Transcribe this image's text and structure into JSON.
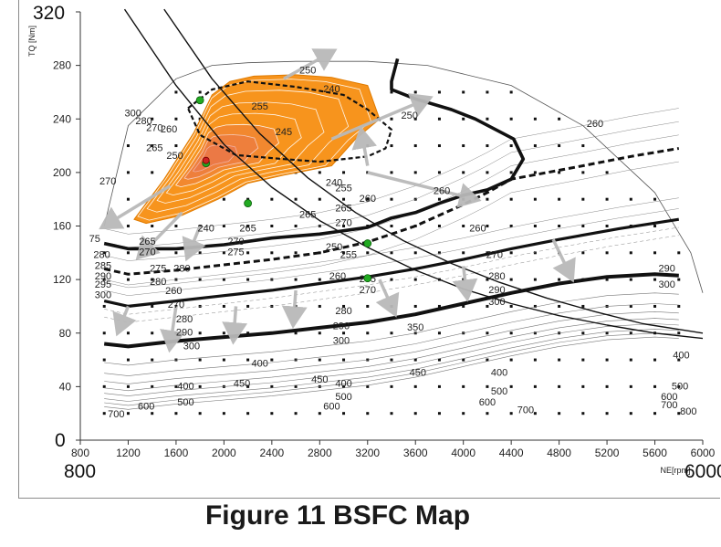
{
  "figure_caption": "Figure 11 BSFC Map",
  "x_axis_start_label": "800",
  "x_axis_end_label": "6000",
  "y_axis_top_label": "320",
  "y_axis_bottom_label": "0",
  "chart_data": {
    "type": "line",
    "title": "",
    "xlabel": "NE[rpm]",
    "ylabel": "TQ [Nm]",
    "xlim": [
      800,
      6000
    ],
    "ylim": [
      0,
      320
    ],
    "x_ticks": [
      800,
      1200,
      1600,
      2000,
      2400,
      2800,
      3200,
      3600,
      4000,
      4400,
      4800,
      5200,
      5600,
      6000
    ],
    "y_ticks": [
      0,
      40,
      80,
      120,
      160,
      200,
      240,
      280,
      320
    ],
    "grid": false,
    "colors": {
      "efficient_zone": "#f7941d",
      "arrows": "#b9b9b9",
      "markers": "#22aa22",
      "optimum": "#cc2222"
    },
    "envelope": {
      "x": [
        1000,
        1200,
        1600,
        1900,
        2200,
        2600,
        3200,
        3700,
        4400,
        5000,
        5600,
        5900,
        6000
      ],
      "y": [
        160,
        235,
        270,
        280,
        282,
        283,
        283,
        280,
        265,
        235,
        185,
        140,
        110
      ]
    },
    "series": [
      {
        "x": [
          1000,
          1200,
          1600,
          2000,
          2400,
          2800,
          3200,
          3600,
          4000,
          4200,
          4400,
          4700,
          5000,
          5400,
          5800
        ],
        "y": [
          128,
          124,
          127,
          131,
          135,
          140,
          148,
          160,
          176,
          185,
          195,
          200,
          205,
          212,
          218
        ]
      },
      {
        "x": [
          1000,
          1200,
          1600,
          2000,
          2400,
          2800,
          3200,
          3600,
          4000,
          4400,
          4800,
          5300,
          5800
        ],
        "y": [
          104,
          100,
          104,
          108,
          112,
          117,
          122,
          128,
          135,
          143,
          150,
          158,
          165
        ]
      },
      {
        "x": [
          1000,
          1200,
          1600,
          2000,
          2400,
          2800,
          3200,
          3600,
          4000,
          4400,
          4800,
          5200,
          5600,
          5800
        ],
        "y": [
          72,
          70,
          74,
          77,
          80,
          84,
          88,
          94,
          102,
          110,
          117,
          122,
          124,
          123
        ]
      },
      {
        "x": [
          1000,
          1200,
          1600,
          2000,
          2400,
          2800,
          3200,
          3400,
          3600,
          3800,
          4000,
          4200,
          4400,
          4500,
          4420,
          4100,
          3900,
          3600,
          3400,
          3400,
          3450
        ],
        "y": [
          147,
          143,
          143,
          146,
          151,
          154,
          159,
          166,
          170,
          177,
          183,
          187,
          195,
          210,
          225,
          240,
          247,
          255,
          262,
          268,
          285
        ]
      },
      {
        "x": [
          1700,
          1900,
          2200,
          2600,
          3000,
          3200,
          3400,
          3350,
          3200,
          2800,
          2500,
          2100,
          1800,
          1700
        ],
        "y": [
          248,
          262,
          268,
          264,
          258,
          247,
          232,
          218,
          212,
          208,
          210,
          213,
          228,
          248
        ]
      },
      {
        "x": [
          1170,
          1600,
          2000,
          2400,
          2800,
          3200,
          3600,
          4000,
          4400,
          4800,
          5200,
          5600,
          6000
        ],
        "y": [
          322,
          265,
          221,
          189,
          164,
          144,
          127,
          113,
          102,
          93,
          86,
          80,
          76
        ]
      },
      {
        "x": [
          1500,
          1900,
          2300,
          2700,
          3100,
          3500,
          3900,
          4300,
          4700,
          5100,
          5500,
          6000
        ],
        "y": [
          322,
          270,
          229,
          196,
          170,
          149,
          132,
          118,
          106,
          96,
          87,
          80
        ]
      }
    ],
    "green_points": [
      {
        "x": 1800,
        "y": 254
      },
      {
        "x": 2200,
        "y": 177
      },
      {
        "x": 3200,
        "y": 147
      },
      {
        "x": 3200,
        "y": 121
      },
      {
        "x": 1850,
        "y": 207
      }
    ],
    "optimum_point": {
      "x": 1850,
      "y": 209
    },
    "efficient_zone": {
      "x": [
        1250,
        1500,
        1750,
        1900,
        2050,
        2250,
        2600,
        2900,
        3200,
        3300,
        3100,
        2900,
        2500,
        2200,
        1950,
        1650,
        1350,
        1250
      ],
      "y": [
        165,
        195,
        230,
        258,
        268,
        272,
        273,
        271,
        265,
        240,
        225,
        205,
        198,
        192,
        180,
        168,
        162,
        165
      ]
    },
    "contour_labels": [
      {
        "text": "250",
        "x": 2700,
        "y": 276
      },
      {
        "text": "240",
        "x": 2900,
        "y": 262
      },
      {
        "text": "250",
        "x": 3550,
        "y": 242
      },
      {
        "text": "260",
        "x": 5100,
        "y": 236
      },
      {
        "text": "255",
        "x": 2300,
        "y": 249
      },
      {
        "text": "245",
        "x": 2500,
        "y": 230
      },
      {
        "text": "300",
        "x": 1240,
        "y": 244
      },
      {
        "text": "280",
        "x": 1330,
        "y": 238
      },
      {
        "text": "270",
        "x": 1420,
        "y": 233
      },
      {
        "text": "260",
        "x": 1540,
        "y": 232
      },
      {
        "text": "250",
        "x": 1590,
        "y": 212
      },
      {
        "text": "265",
        "x": 1420,
        "y": 218
      },
      {
        "text": "270",
        "x": 1030,
        "y": 193
      },
      {
        "text": "240",
        "x": 2920,
        "y": 192
      },
      {
        "text": "255",
        "x": 3000,
        "y": 188
      },
      {
        "text": "260",
        "x": 3200,
        "y": 180
      },
      {
        "text": "260",
        "x": 3820,
        "y": 186
      },
      {
        "text": "265",
        "x": 2700,
        "y": 168
      },
      {
        "text": "265",
        "x": 3000,
        "y": 173
      },
      {
        "text": "260",
        "x": 4120,
        "y": 158
      },
      {
        "text": "240",
        "x": 1850,
        "y": 158
      },
      {
        "text": "265",
        "x": 2200,
        "y": 158
      },
      {
        "text": "270",
        "x": 2100,
        "y": 148
      },
      {
        "text": "275",
        "x": 2100,
        "y": 140
      },
      {
        "text": "265",
        "x": 1360,
        "y": 148
      },
      {
        "text": "270",
        "x": 1360,
        "y": 140
      },
      {
        "text": "75",
        "x": 920,
        "y": 150
      },
      {
        "text": "280",
        "x": 980,
        "y": 138
      },
      {
        "text": "285",
        "x": 990,
        "y": 130
      },
      {
        "text": "290",
        "x": 990,
        "y": 122
      },
      {
        "text": "295",
        "x": 990,
        "y": 116
      },
      {
        "text": "300",
        "x": 990,
        "y": 108
      },
      {
        "text": "250",
        "x": 2920,
        "y": 144
      },
      {
        "text": "255",
        "x": 3040,
        "y": 138
      },
      {
        "text": "270",
        "x": 4260,
        "y": 138
      },
      {
        "text": "280",
        "x": 1650,
        "y": 128
      },
      {
        "text": "275",
        "x": 1450,
        "y": 128
      },
      {
        "text": "280",
        "x": 1450,
        "y": 118
      },
      {
        "text": "260",
        "x": 2950,
        "y": 122
      },
      {
        "text": "265",
        "x": 3200,
        "y": 120
      },
      {
        "text": "270",
        "x": 3200,
        "y": 112
      },
      {
        "text": "280",
        "x": 4280,
        "y": 122
      },
      {
        "text": "290",
        "x": 4280,
        "y": 112
      },
      {
        "text": "300",
        "x": 4280,
        "y": 103
      },
      {
        "text": "260",
        "x": 1580,
        "y": 111
      },
      {
        "text": "270",
        "x": 1600,
        "y": 101
      },
      {
        "text": "280",
        "x": 1670,
        "y": 90
      },
      {
        "text": "290",
        "x": 1670,
        "y": 80
      },
      {
        "text": "300",
        "x": 1730,
        "y": 70
      },
      {
        "text": "280",
        "x": 3000,
        "y": 96
      },
      {
        "text": "290",
        "x": 2980,
        "y": 85
      },
      {
        "text": "300",
        "x": 2980,
        "y": 74
      },
      {
        "text": "290",
        "x": 5700,
        "y": 128
      },
      {
        "text": "300",
        "x": 5700,
        "y": 116
      },
      {
        "text": "400",
        "x": 4300,
        "y": 50
      },
      {
        "text": "400",
        "x": 1680,
        "y": 40
      },
      {
        "text": "500",
        "x": 1680,
        "y": 28
      },
      {
        "text": "600",
        "x": 1350,
        "y": 25
      },
      {
        "text": "700",
        "x": 1100,
        "y": 19
      },
      {
        "text": "400",
        "x": 3000,
        "y": 42
      },
      {
        "text": "500",
        "x": 3000,
        "y": 32
      },
      {
        "text": "600",
        "x": 2900,
        "y": 25
      },
      {
        "text": "500",
        "x": 4300,
        "y": 36
      },
      {
        "text": "600",
        "x": 4200,
        "y": 28
      },
      {
        "text": "700",
        "x": 4520,
        "y": 22
      },
      {
        "text": "400",
        "x": 5820,
        "y": 63
      },
      {
        "text": "500",
        "x": 5810,
        "y": 40
      },
      {
        "text": "600",
        "x": 5720,
        "y": 32
      },
      {
        "text": "700",
        "x": 5720,
        "y": 26
      },
      {
        "text": "800",
        "x": 5880,
        "y": 21
      },
      {
        "text": "400",
        "x": 2300,
        "y": 57
      },
      {
        "text": "450",
        "x": 2150,
        "y": 42
      },
      {
        "text": "450",
        "x": 2800,
        "y": 45
      },
      {
        "text": "450",
        "x": 3620,
        "y": 50
      },
      {
        "text": "350",
        "x": 3600,
        "y": 84
      },
      {
        "text": "270",
        "x": 3000,
        "y": 162
      }
    ]
  }
}
